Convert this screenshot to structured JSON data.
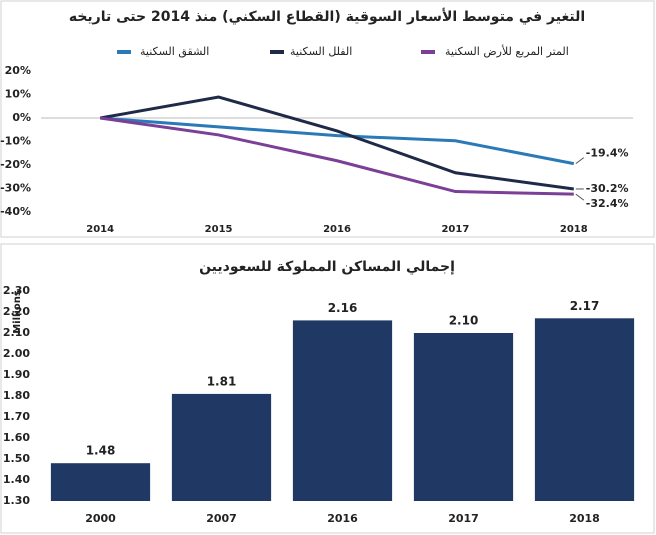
{
  "chart_data": [
    {
      "type": "line",
      "title": "التغير في متوسط الأسعار السوقية (القطاع السكني) منذ 2014 حتى تاريخه",
      "categories": [
        "2014",
        "2015",
        "2016",
        "2017",
        "2018"
      ],
      "series": [
        {
          "name": "الشقق السكنية",
          "color": "#2a7ab8",
          "values": [
            0,
            -3.8,
            -7.5,
            -9.7,
            -19.4
          ],
          "value_labels": [
            null,
            null,
            null,
            null,
            "-19.4%"
          ]
        },
        {
          "name": "الفلل السكنية",
          "color": "#1f2a48",
          "values": [
            0,
            8.9,
            -5.5,
            -23.3,
            -30.2
          ],
          "value_labels": [
            null,
            null,
            null,
            null,
            "-30.2%"
          ]
        },
        {
          "name": "المتر المربع للأرض السكنية",
          "color": "#7b3f98",
          "values": [
            0,
            -7.2,
            -18.2,
            -31.3,
            -32.4
          ],
          "value_labels": [
            null,
            null,
            null,
            null,
            "-32.4%"
          ]
        }
      ],
      "ylim": [
        -40,
        20
      ],
      "yticks": [
        {
          "value": 20,
          "label": "20%"
        },
        {
          "value": 10,
          "label": "10%"
        },
        {
          "value": 0,
          "label": "0%"
        },
        {
          "value": -10,
          "label": "-10%"
        },
        {
          "value": -20,
          "label": "-20%"
        },
        {
          "value": -30,
          "label": "-30%"
        },
        {
          "value": -40,
          "label": "-40%"
        }
      ],
      "legend": "top"
    },
    {
      "type": "bar",
      "title": "إجمالي المساكن المملوكة للسعوديين",
      "y_label": "Millions",
      "categories": [
        "2000",
        "2007",
        "2016",
        "2017",
        "2018"
      ],
      "values": [
        1.48,
        1.81,
        2.16,
        2.1,
        2.17
      ],
      "value_labels": [
        "1.48",
        "1.81",
        "2.16",
        "2.10",
        "2.17"
      ],
      "color": "#203864",
      "ylim": [
        1.3,
        2.3
      ],
      "yticks": [
        {
          "value": 2.3,
          "label": "2.30"
        },
        {
          "value": 2.2,
          "label": "2.20"
        },
        {
          "value": 2.1,
          "label": "2.10"
        },
        {
          "value": 2.0,
          "label": "2.00"
        },
        {
          "value": 1.9,
          "label": "1.90"
        },
        {
          "value": 1.8,
          "label": "1.80"
        },
        {
          "value": 1.7,
          "label": "1.70"
        },
        {
          "value": 1.6,
          "label": "1.60"
        },
        {
          "value": 1.5,
          "label": "1.50"
        },
        {
          "value": 1.4,
          "label": "1.40"
        },
        {
          "value": 1.3,
          "label": "1.30"
        }
      ]
    }
  ]
}
